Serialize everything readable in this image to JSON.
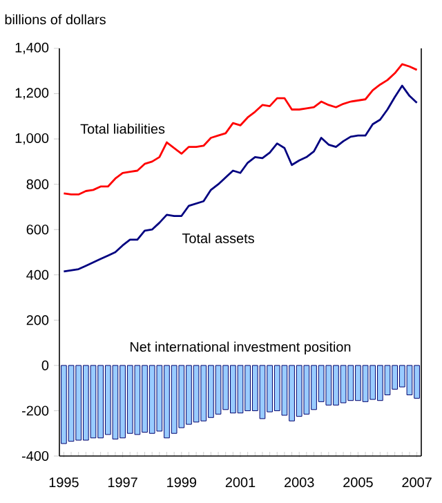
{
  "chart_data": {
    "type": "line",
    "ylabel": "billions of dollars",
    "x": [
      1995,
      1995.25,
      1995.5,
      1995.75,
      1996,
      1996.25,
      1996.5,
      1996.75,
      1997,
      1997.25,
      1997.5,
      1997.75,
      1998,
      1998.25,
      1998.5,
      1998.75,
      1999,
      1999.25,
      1999.5,
      1999.75,
      2000,
      2000.25,
      2000.5,
      2000.75,
      2001,
      2001.25,
      2001.5,
      2001.75,
      2002,
      2002.25,
      2002.5,
      2002.75,
      2003,
      2003.25,
      2003.5,
      2003.75,
      2004,
      2004.25,
      2004.5,
      2004.75,
      2005,
      2005.25,
      2005.5,
      2005.75,
      2006,
      2006.25,
      2006.5,
      2006.75,
      2007
    ],
    "series": [
      {
        "name": "Net international investment position",
        "type": "bar",
        "color": "#99ccff",
        "values": [
          -345,
          -335,
          -330,
          -330,
          -320,
          -320,
          -305,
          -325,
          -320,
          -300,
          -305,
          -295,
          -300,
          -290,
          -320,
          -300,
          -275,
          -260,
          -250,
          -245,
          -230,
          -215,
          -195,
          -210,
          -210,
          -200,
          -200,
          -235,
          -205,
          -200,
          -220,
          -245,
          -225,
          -215,
          -195,
          -160,
          -175,
          -175,
          -165,
          -155,
          -155,
          -160,
          -150,
          -155,
          -130,
          -105,
          -95,
          -130,
          -145
        ]
      },
      {
        "name": "Total liabilities",
        "color": "#ff0000",
        "values": [
          760,
          755,
          755,
          770,
          775,
          790,
          790,
          825,
          850,
          855,
          860,
          890,
          900,
          920,
          985,
          960,
          935,
          965,
          965,
          970,
          1005,
          1015,
          1025,
          1070,
          1060,
          1095,
          1120,
          1150,
          1145,
          1180,
          1180,
          1130,
          1130,
          1135,
          1140,
          1165,
          1150,
          1140,
          1155,
          1165,
          1170,
          1175,
          1215,
          1240,
          1260,
          1290,
          1330,
          1320,
          1305
        ]
      },
      {
        "name": "Total assets",
        "color": "#000080",
        "values": [
          415,
          420,
          425,
          440,
          455,
          470,
          485,
          500,
          530,
          555,
          555,
          595,
          600,
          630,
          665,
          660,
          660,
          705,
          715,
          725,
          775,
          800,
          830,
          860,
          850,
          895,
          920,
          915,
          940,
          980,
          960,
          885,
          905,
          920,
          945,
          1005,
          975,
          965,
          990,
          1010,
          1015,
          1015,
          1065,
          1085,
          1130,
          1185,
          1235,
          1190,
          1160
        ]
      }
    ],
    "xlim": [
      1994.85,
      2007.15
    ],
    "xticks": [
      1995,
      1997,
      1999,
      2001,
      2003,
      2005,
      2007
    ],
    "ylim": [
      -400,
      1400
    ],
    "yticks": [
      {
        "value": -400,
        "label": "-400"
      },
      {
        "value": -200,
        "label": "-200"
      },
      0,
      200,
      400,
      600,
      800,
      {
        "value": 1000,
        "label": "1,000"
      },
      {
        "value": 1200,
        "label": "1,200"
      },
      {
        "value": 1400,
        "label": "1,400"
      }
    ],
    "grid": false
  }
}
